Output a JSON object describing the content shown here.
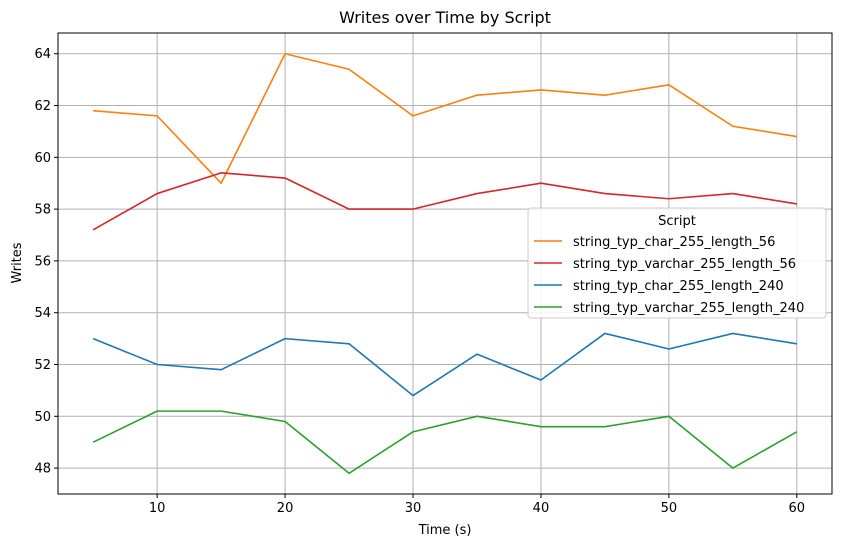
{
  "chart_data": {
    "type": "line",
    "title": "Writes over Time by Script",
    "xlabel": "Time (s)",
    "ylabel": "Writes",
    "x": [
      5,
      10,
      15,
      20,
      25,
      30,
      35,
      40,
      45,
      50,
      55,
      60
    ],
    "xlim": [
      2.25,
      62.75
    ],
    "ylim": [
      47.0,
      64.8
    ],
    "xticks": [
      10,
      20,
      30,
      40,
      50,
      60
    ],
    "yticks": [
      48,
      50,
      52,
      54,
      56,
      58,
      60,
      62,
      64
    ],
    "grid": true,
    "legend": {
      "title": "Script",
      "placement": "center-right"
    },
    "series": [
      {
        "name": "string_typ_char_255_length_56",
        "color": "#ff7f0e",
        "values": [
          61.8,
          61.6,
          59.0,
          64.0,
          63.4,
          61.6,
          62.4,
          62.6,
          62.4,
          62.8,
          61.2,
          60.8
        ]
      },
      {
        "name": "string_typ_varchar_255_length_56",
        "color": "#d62728",
        "values": [
          57.2,
          58.6,
          59.4,
          59.2,
          58.0,
          58.0,
          58.6,
          59.0,
          58.6,
          58.4,
          58.6,
          58.2
        ]
      },
      {
        "name": "string_typ_char_255_length_240",
        "color": "#1f77b4",
        "values": [
          53.0,
          52.0,
          51.8,
          53.0,
          52.8,
          50.8,
          52.4,
          51.4,
          53.2,
          52.6,
          53.2,
          52.8
        ]
      },
      {
        "name": "string_typ_varchar_255_length_240",
        "color": "#2ca02c",
        "values": [
          49.0,
          50.2,
          50.2,
          49.8,
          47.8,
          49.4,
          50.0,
          49.6,
          49.6,
          50.0,
          48.0,
          49.4
        ]
      }
    ]
  }
}
